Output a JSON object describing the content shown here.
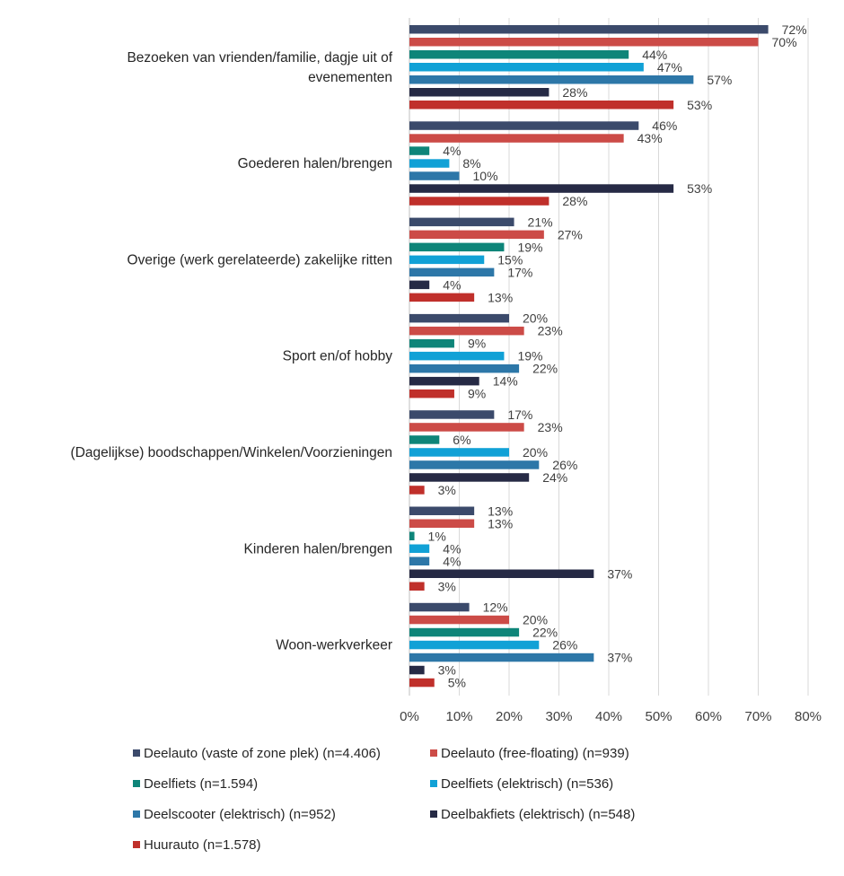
{
  "chart_data": {
    "type": "bar",
    "orientation": "horizontal",
    "categories": [
      "Bezoeken van vrienden/familie, dagje uit of evenementen",
      "Goederen halen/brengen",
      "Overige (werk gerelateerde) zakelijke ritten",
      "Sport en/of hobby",
      "(Dagelijkse) boodschappen/Winkelen/Voorzieningen",
      "Kinderen halen/brengen",
      "Woon-werkverkeer"
    ],
    "category_label_lines": [
      [
        "Bezoeken van vrienden/familie, dagje uit of",
        "evenementen"
      ],
      [
        "Goederen halen/brengen"
      ],
      [
        "Overige (werk gerelateerde) zakelijke ritten"
      ],
      [
        "Sport en/of hobby"
      ],
      [
        "(Dagelijkse) boodschappen/Winkelen/Voorzieningen"
      ],
      [
        "Kinderen halen/brengen"
      ],
      [
        "Woon-werkverkeer"
      ]
    ],
    "series": [
      {
        "name": "Deelauto (vaste of zone plek) (n=4.406)",
        "color": "#3b4a6b",
        "values": [
          72,
          46,
          21,
          20,
          17,
          13,
          12
        ]
      },
      {
        "name": "Deelauto (free-floating) (n=939)",
        "color": "#cc4b47",
        "values": [
          70,
          43,
          27,
          23,
          23,
          13,
          20
        ]
      },
      {
        "name": "Deelfiets (n=1.594)",
        "color": "#0e8579",
        "values": [
          44,
          4,
          19,
          9,
          6,
          1,
          22
        ]
      },
      {
        "name": "Deelfiets (elektrisch) (n=536)",
        "color": "#11a1d6",
        "values": [
          47,
          8,
          15,
          19,
          20,
          4,
          26
        ]
      },
      {
        "name": "Deelscooter (elektrisch) (n=952)",
        "color": "#2d77a8",
        "values": [
          57,
          10,
          17,
          22,
          26,
          4,
          37
        ]
      },
      {
        "name": "Deelbakfiets (elektrisch) (n=548)",
        "color": "#262a45",
        "values": [
          28,
          53,
          4,
          14,
          24,
          37,
          3
        ]
      },
      {
        "name": "Huurauto (n=1.578)",
        "color": "#c0302b",
        "values": [
          53,
          28,
          13,
          9,
          3,
          3,
          5
        ]
      }
    ],
    "value_suffix": "%",
    "xlim": [
      0,
      80
    ],
    "xticks": [
      0,
      10,
      20,
      30,
      40,
      50,
      60,
      70,
      80
    ],
    "xtick_labels": [
      "0%",
      "10%",
      "20%",
      "30%",
      "40%",
      "50%",
      "60%",
      "70%",
      "80%"
    ],
    "grid": "vertical",
    "legend_position": "bottom",
    "title": "",
    "xlabel": "",
    "ylabel": ""
  }
}
